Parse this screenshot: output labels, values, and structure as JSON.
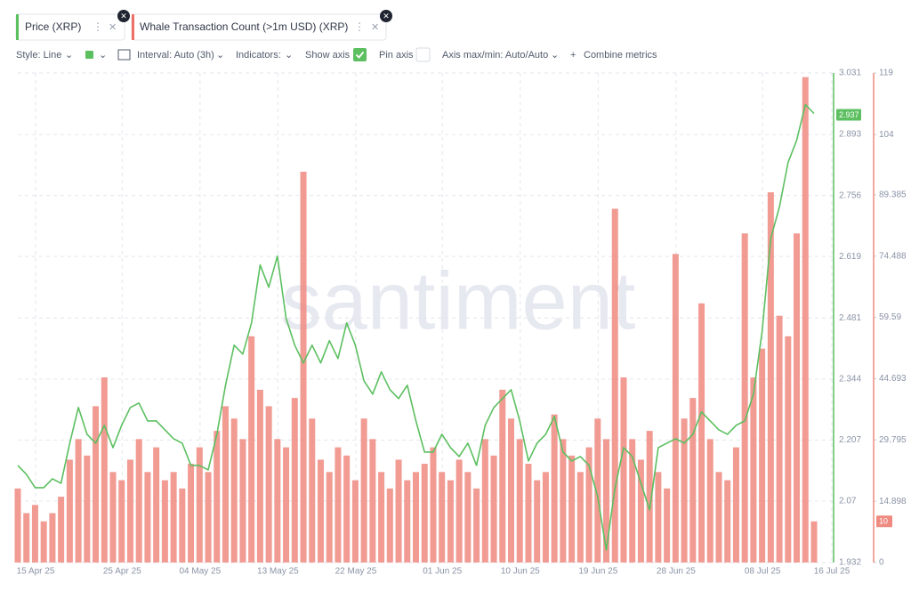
{
  "toolbar": {
    "style": "Style: Line",
    "interval": "Interval: Auto (3h)",
    "indicators": "Indicators:",
    "show_axis": "Show axis",
    "pin_axis": "Pin axis",
    "axis_maxmin": "Axis max/min: Auto/Auto",
    "combine": "Combine metrics"
  },
  "watermark": "santiment",
  "chart_data": {
    "type": "combo",
    "x": [
      "2025-04-15",
      "2025-04-16",
      "2025-04-17",
      "2025-04-18",
      "2025-04-19",
      "2025-04-20",
      "2025-04-21",
      "2025-04-22",
      "2025-04-23",
      "2025-04-24",
      "2025-04-25",
      "2025-04-26",
      "2025-04-27",
      "2025-04-28",
      "2025-04-29",
      "2025-04-30",
      "2025-05-01",
      "2025-05-02",
      "2025-05-03",
      "2025-05-04",
      "2025-05-05",
      "2025-05-06",
      "2025-05-07",
      "2025-05-08",
      "2025-05-09",
      "2025-05-10",
      "2025-05-11",
      "2025-05-12",
      "2025-05-13",
      "2025-05-14",
      "2025-05-15",
      "2025-05-16",
      "2025-05-17",
      "2025-05-18",
      "2025-05-19",
      "2025-05-20",
      "2025-05-21",
      "2025-05-22",
      "2025-05-23",
      "2025-05-24",
      "2025-05-25",
      "2025-05-26",
      "2025-05-27",
      "2025-05-28",
      "2025-05-29",
      "2025-05-30",
      "2025-05-31",
      "2025-06-01",
      "2025-06-02",
      "2025-06-03",
      "2025-06-04",
      "2025-06-05",
      "2025-06-06",
      "2025-06-07",
      "2025-06-08",
      "2025-06-09",
      "2025-06-10",
      "2025-06-11",
      "2025-06-12",
      "2025-06-13",
      "2025-06-14",
      "2025-06-15",
      "2025-06-16",
      "2025-06-17",
      "2025-06-18",
      "2025-06-19",
      "2025-06-20",
      "2025-06-21",
      "2025-06-22",
      "2025-06-23",
      "2025-06-24",
      "2025-06-25",
      "2025-06-26",
      "2025-06-27",
      "2025-06-28",
      "2025-06-29",
      "2025-06-30",
      "2025-07-01",
      "2025-07-02",
      "2025-07-03",
      "2025-07-04",
      "2025-07-05",
      "2025-07-06",
      "2025-07-07",
      "2025-07-08",
      "2025-07-09",
      "2025-07-10",
      "2025-07-11",
      "2025-07-12",
      "2025-07-13",
      "2025-07-14",
      "2025-07-15",
      "2025-07-16"
    ],
    "xticks": [
      {
        "value": "2025-04-15",
        "label": "15 Apr 25"
      },
      {
        "value": "2025-04-25",
        "label": "25 Apr 25"
      },
      {
        "value": "2025-05-04",
        "label": "04 May 25"
      },
      {
        "value": "2025-05-13",
        "label": "13 May 25"
      },
      {
        "value": "2025-05-22",
        "label": "22 May 25"
      },
      {
        "value": "2025-06-01",
        "label": "01 Jun 25"
      },
      {
        "value": "2025-06-10",
        "label": "10 Jun 25"
      },
      {
        "value": "2025-06-19",
        "label": "19 Jun 25"
      },
      {
        "value": "2025-06-28",
        "label": "28 Jun 25"
      },
      {
        "value": "2025-07-08",
        "label": "08 Jul 25"
      },
      {
        "value": "2025-07-16",
        "label": "16 Jul 25"
      }
    ],
    "ylim": [
      1.932,
      3.031
    ],
    "yticks": [
      1.932,
      2.07,
      2.207,
      2.344,
      2.481,
      2.619,
      2.756,
      2.893,
      3.031
    ],
    "y2lim": [
      0,
      119
    ],
    "y2ticks": [
      0,
      14.898,
      29.795,
      44.693,
      59.59,
      74.488,
      89.385,
      104,
      119
    ],
    "grid": true,
    "series": [
      {
        "name": "Price (XRP)",
        "type": "line",
        "color": "#5cbf60",
        "values": [
          2.15,
          2.13,
          2.1,
          2.1,
          2.12,
          2.11,
          2.2,
          2.28,
          2.22,
          2.2,
          2.24,
          2.19,
          2.24,
          2.28,
          2.29,
          2.25,
          2.25,
          2.23,
          2.21,
          2.2,
          2.15,
          2.15,
          2.14,
          2.22,
          2.33,
          2.42,
          2.4,
          2.47,
          2.6,
          2.55,
          2.62,
          2.48,
          2.42,
          2.38,
          2.42,
          2.38,
          2.43,
          2.39,
          2.47,
          2.42,
          2.34,
          2.31,
          2.36,
          2.32,
          2.3,
          2.33,
          2.25,
          2.18,
          2.18,
          2.22,
          2.19,
          2.17,
          2.2,
          2.15,
          2.24,
          2.28,
          2.3,
          2.32,
          2.25,
          2.16,
          2.2,
          2.22,
          2.26,
          2.18,
          2.16,
          2.17,
          2.15,
          2.08,
          1.96,
          2.1,
          2.19,
          2.17,
          2.11,
          2.05,
          2.19,
          2.2,
          2.21,
          2.2,
          2.22,
          2.27,
          2.25,
          2.23,
          2.22,
          2.24,
          2.25,
          2.31,
          2.45,
          2.66,
          2.73,
          2.83,
          2.88,
          2.96,
          2.94
        ]
      },
      {
        "name": "Whale Transaction Count (>1m USD) (XRP)",
        "type": "bar",
        "axis": "y2",
        "color": "#ee8a80",
        "values": [
          18,
          12,
          14,
          10,
          12,
          16,
          25,
          30,
          26,
          38,
          45,
          22,
          20,
          25,
          30,
          22,
          28,
          20,
          22,
          18,
          24,
          28,
          22,
          32,
          38,
          35,
          30,
          55,
          42,
          38,
          30,
          28,
          40,
          95,
          35,
          25,
          22,
          28,
          26,
          20,
          35,
          30,
          22,
          18,
          25,
          20,
          22,
          24,
          28,
          22,
          20,
          25,
          22,
          18,
          30,
          26,
          42,
          35,
          30,
          24,
          20,
          22,
          36,
          30,
          26,
          22,
          28,
          35,
          30,
          86,
          45,
          30,
          25,
          32,
          22,
          18,
          75,
          35,
          40,
          63,
          30,
          22,
          20,
          28,
          80,
          45,
          52,
          90,
          60,
          55,
          80,
          118,
          10
        ]
      }
    ],
    "current_values": [
      2.937,
      10
    ]
  }
}
